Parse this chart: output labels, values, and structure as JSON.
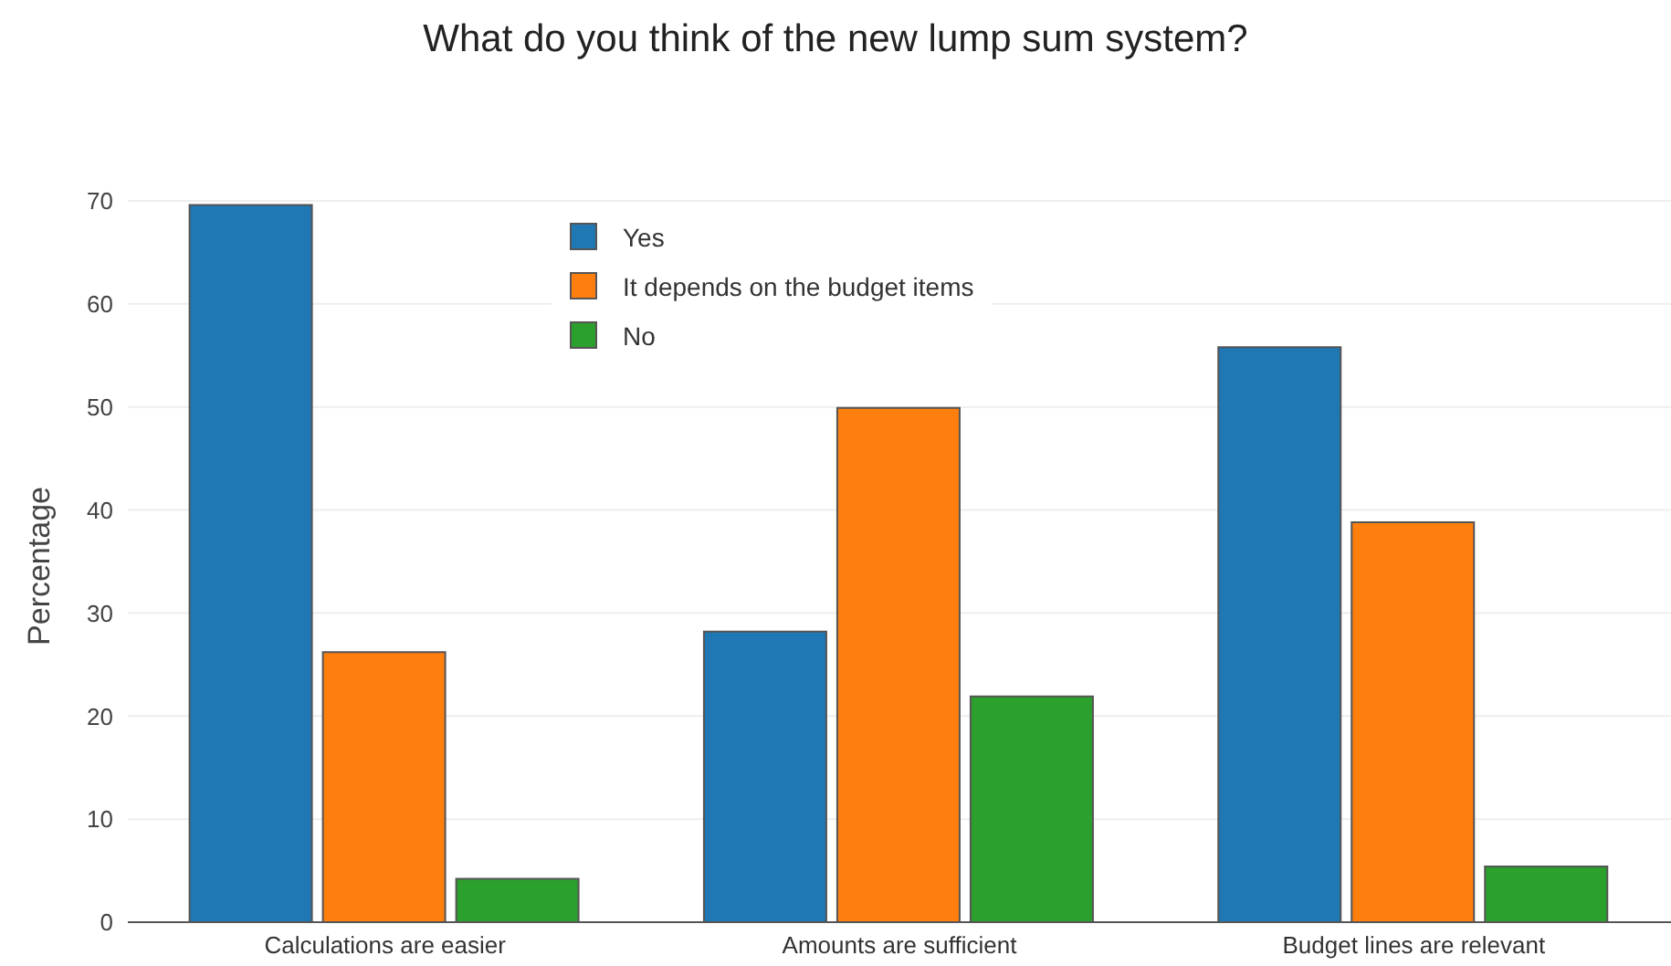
{
  "chart_data": {
    "type": "bar",
    "title": "What do you think of the new lump sum system?",
    "ylabel": "Percentage",
    "categories": [
      "Calculations are easier",
      "Amounts are sufficient",
      "Budget lines are relevant"
    ],
    "series": [
      {
        "name": "Yes",
        "color": "#1f77b4",
        "values": [
          69.6,
          28.2,
          55.8
        ]
      },
      {
        "name": "It depends on the budget items",
        "color": "#ff7f0e",
        "values": [
          26.2,
          49.9,
          38.8
        ]
      },
      {
        "name": "No",
        "color": "#2ca02c",
        "values": [
          4.2,
          21.9,
          5.4
        ]
      }
    ],
    "ylim": [
      0,
      70
    ],
    "yticks": [
      0,
      10,
      20,
      30,
      40,
      50,
      60,
      70
    ],
    "grid": "y",
    "legend": "top"
  }
}
